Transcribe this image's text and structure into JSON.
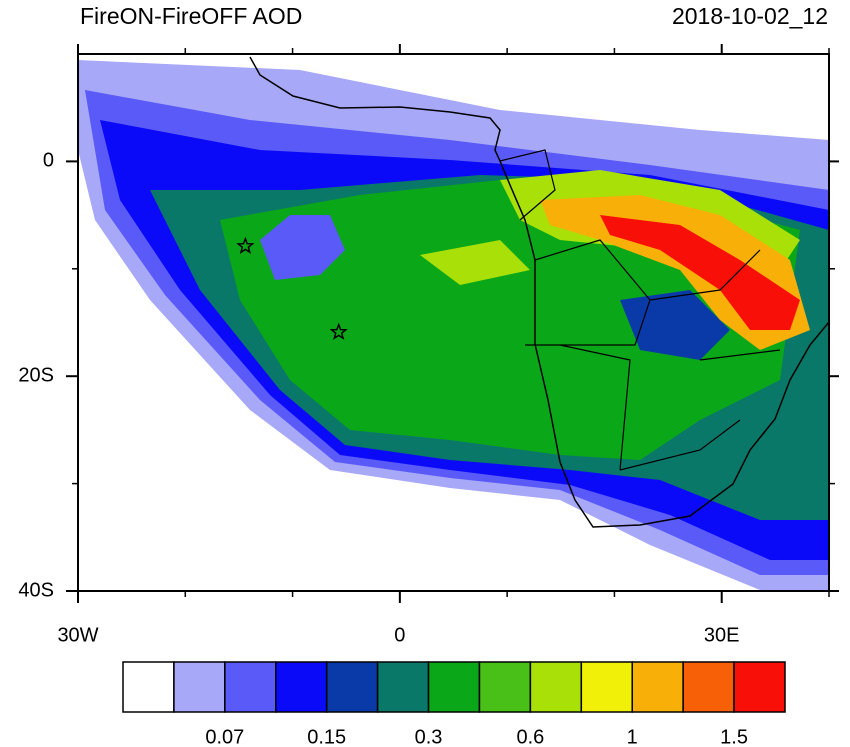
{
  "chart_data": {
    "type": "contour-map",
    "title": "FireON-FireOFF AOD",
    "date_label": "2018-10-02_12",
    "xlim": [
      -30,
      40
    ],
    "ylim": [
      -40,
      10
    ],
    "xticks": [
      {
        "value": -30,
        "label": "30W"
      },
      0,
      {
        "value": 30,
        "label": "30E"
      }
    ],
    "xticks_minor": [
      -20,
      -10,
      10,
      20,
      40
    ],
    "yticks": [
      0,
      {
        "value": -20,
        "label": "20S"
      },
      {
        "value": -40,
        "label": "40S"
      }
    ],
    "yticks_minor": [
      -10,
      -30
    ],
    "markers": [
      {
        "lon": -14.4,
        "lat": -7.9
      },
      {
        "lon": -5.7,
        "lat": -15.9
      }
    ],
    "colorbar": {
      "colors": [
        "#ffffff",
        "#a8a8f8",
        "#5a5af8",
        "#0a0af8",
        "#0a3aa8",
        "#0a7868",
        "#0aa818",
        "#48c018",
        "#a8e008",
        "#f0f008",
        "#f8b008",
        "#f86008",
        "#f81008"
      ],
      "levels": [
        null,
        0.07,
        null,
        0.15,
        null,
        0.3,
        null,
        0.6,
        null,
        1,
        null,
        1.5
      ]
    }
  }
}
